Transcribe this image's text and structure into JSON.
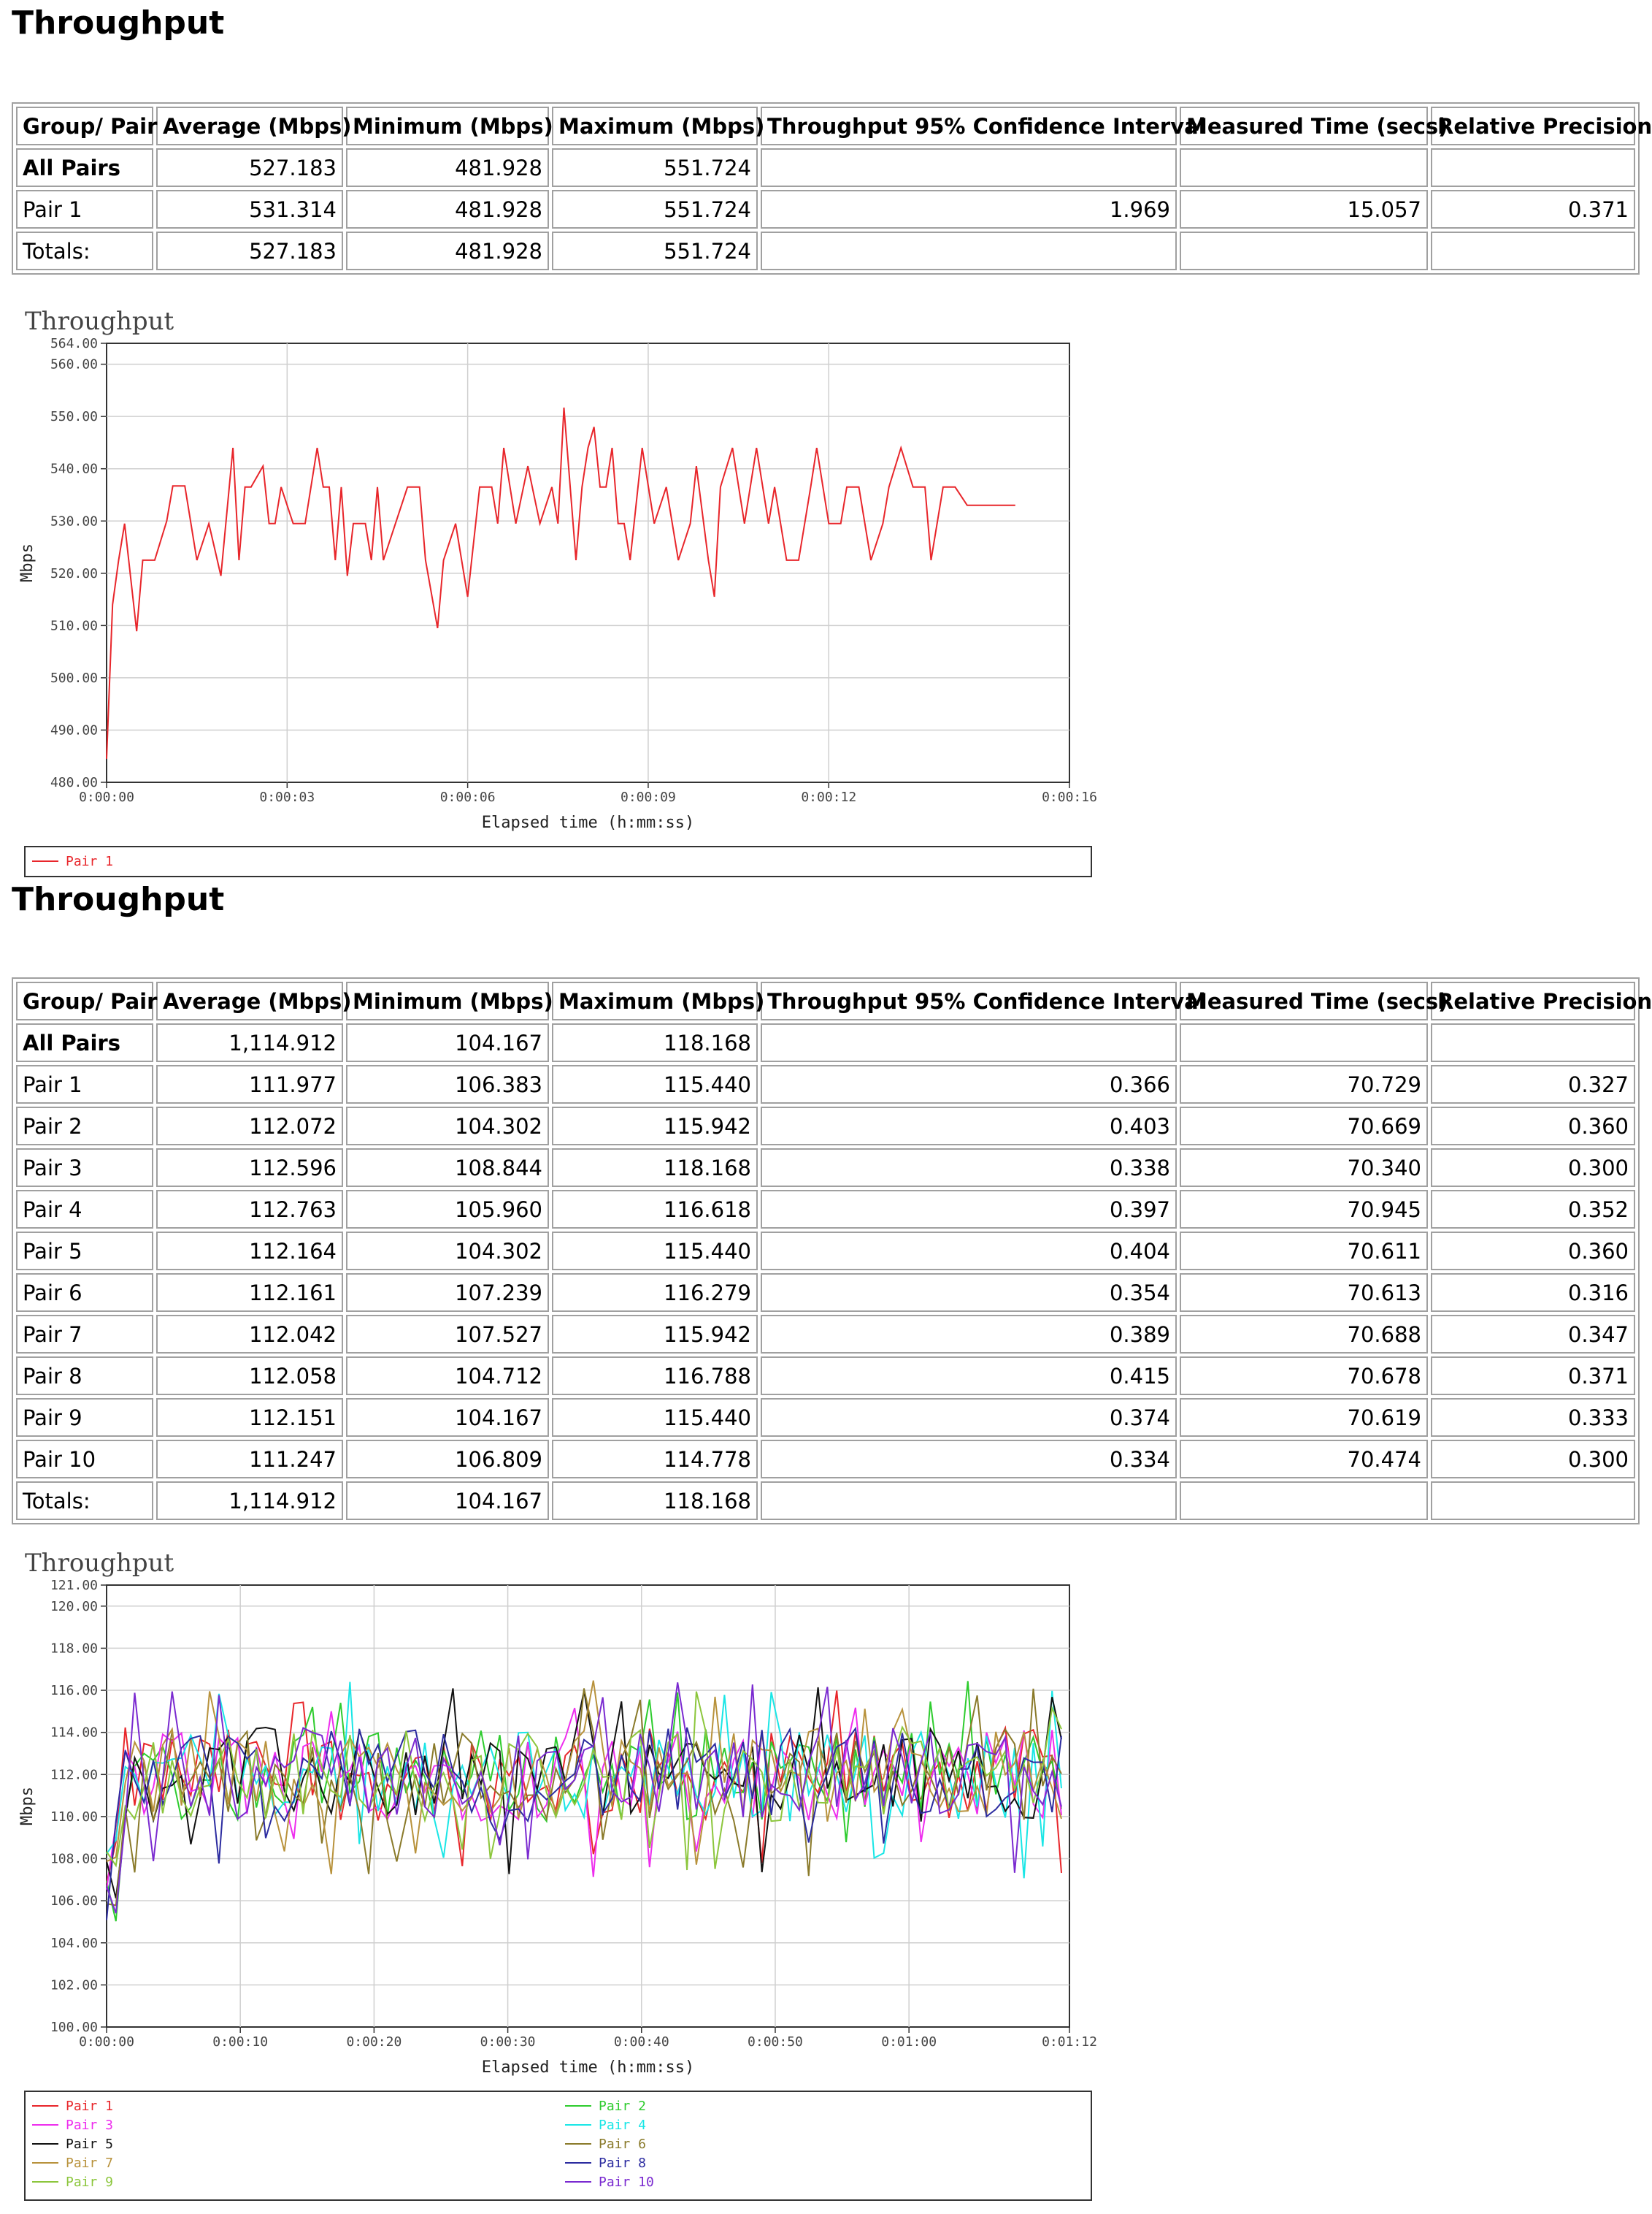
{
  "sections": [
    {
      "title": "Throughput",
      "headers": [
        "Group/ Pair",
        "Average (Mbps)",
        "Minimum (Mbps)",
        "Maximum (Mbps)",
        "Throughput 95% Confidence Interval",
        "Measured Time (secs)",
        "Relative Precision"
      ],
      "rows": [
        [
          "All Pairs",
          "527.183",
          "481.928",
          "551.724",
          "",
          "",
          ""
        ],
        [
          "Pair 1",
          "531.314",
          "481.928",
          "551.724",
          "1.969",
          "15.057",
          "0.371"
        ],
        [
          "Totals:",
          "527.183",
          "481.928",
          "551.724",
          "",
          "",
          ""
        ]
      ]
    },
    {
      "title": "Throughput",
      "headers": [
        "Group/ Pair",
        "Average (Mbps)",
        "Minimum (Mbps)",
        "Maximum (Mbps)",
        "Throughput 95% Confidence Interval",
        "Measured Time (secs)",
        "Relative Precision"
      ],
      "rows": [
        [
          "All Pairs",
          "1,114.912",
          "104.167",
          "118.168",
          "",
          "",
          ""
        ],
        [
          "Pair 1",
          "111.977",
          "106.383",
          "115.440",
          "0.366",
          "70.729",
          "0.327"
        ],
        [
          "Pair 2",
          "112.072",
          "104.302",
          "115.942",
          "0.403",
          "70.669",
          "0.360"
        ],
        [
          "Pair 3",
          "112.596",
          "108.844",
          "118.168",
          "0.338",
          "70.340",
          "0.300"
        ],
        [
          "Pair 4",
          "112.763",
          "105.960",
          "116.618",
          "0.397",
          "70.945",
          "0.352"
        ],
        [
          "Pair 5",
          "112.164",
          "104.302",
          "115.440",
          "0.404",
          "70.611",
          "0.360"
        ],
        [
          "Pair 6",
          "112.161",
          "107.239",
          "116.279",
          "0.354",
          "70.613",
          "0.316"
        ],
        [
          "Pair 7",
          "112.042",
          "107.527",
          "115.942",
          "0.389",
          "70.688",
          "0.347"
        ],
        [
          "Pair 8",
          "112.058",
          "104.712",
          "116.788",
          "0.415",
          "70.678",
          "0.371"
        ],
        [
          "Pair 9",
          "112.151",
          "104.167",
          "115.440",
          "0.374",
          "70.619",
          "0.333"
        ],
        [
          "Pair 10",
          "111.247",
          "106.809",
          "114.778",
          "0.334",
          "70.474",
          "0.300"
        ],
        [
          "Totals:",
          "1,114.912",
          "104.167",
          "118.168",
          "",
          "",
          ""
        ]
      ]
    }
  ],
  "chart_data": [
    {
      "type": "line",
      "title": "Throughput",
      "xlabel": "Elapsed time (h:mm:ss)",
      "ylabel": "Mbps",
      "xlim": [
        0,
        16
      ],
      "ylim": [
        480,
        564
      ],
      "yticks": [
        "480.00",
        "490.00",
        "500.00",
        "510.00",
        "520.00",
        "530.00",
        "540.00",
        "550.00",
        "560.00",
        "564.00"
      ],
      "xticks": [
        "0:00:00",
        "0:00:03",
        "0:00:06",
        "0:00:09",
        "0:00:12",
        "0:00:16"
      ],
      "grid": true,
      "legend_position": "bottom",
      "series": [
        {
          "name": "Pair 1",
          "color": "#e8262b",
          "x": [
            0.0,
            0.1,
            0.2,
            0.3,
            0.5,
            0.6,
            0.8,
            1.0,
            1.1,
            1.3,
            1.5,
            1.7,
            1.8,
            1.9,
            2.1,
            2.2,
            2.3,
            2.4,
            2.6,
            2.7,
            2.8,
            2.9,
            3.1,
            3.3,
            3.5,
            3.6,
            3.7,
            3.8,
            3.9,
            4.0,
            4.1,
            4.3,
            4.4,
            4.5,
            4.6,
            4.8,
            5.0,
            5.2,
            5.3,
            5.5,
            5.6,
            5.8,
            6.0,
            6.2,
            6.4,
            6.5,
            6.6,
            6.8,
            7.0,
            7.2,
            7.4,
            7.5,
            7.6,
            7.8,
            7.9,
            8.0,
            8.1,
            8.2,
            8.3,
            8.4,
            8.5,
            8.6,
            8.7,
            8.9,
            9.1,
            9.3,
            9.5,
            9.7,
            9.8,
            10.0,
            10.1,
            10.2,
            10.4,
            10.6,
            10.8,
            11.0,
            11.1,
            11.3,
            11.5,
            11.7,
            11.8,
            12.0,
            12.2,
            12.3,
            12.5,
            12.7,
            12.9,
            13.0,
            13.2,
            13.4,
            13.6,
            13.7,
            13.9,
            14.1,
            14.3,
            14.4,
            14.5,
            14.7,
            14.9,
            15.1
          ],
          "values": [
            484.5,
            514,
            522.5,
            529.5,
            508.9,
            522.5,
            522.5,
            530,
            536.7,
            536.7,
            522.5,
            529.5,
            524.5,
            519.5,
            544,
            522.5,
            536.5,
            536.5,
            540.5,
            529.5,
            529.5,
            536.5,
            529.5,
            529.5,
            544,
            536.5,
            536.5,
            522.5,
            536.5,
            519.5,
            529.5,
            529.5,
            522.5,
            536.5,
            522.5,
            529.5,
            536.5,
            536.5,
            522.5,
            509.5,
            522.5,
            529.5,
            515.5,
            536.5,
            536.5,
            529.5,
            544,
            529.5,
            540.5,
            529.5,
            536.5,
            529.5,
            551.7,
            522.5,
            536.5,
            544,
            548,
            536.5,
            536.5,
            544,
            529.5,
            529.5,
            522.5,
            544,
            529.5,
            536.5,
            522.5,
            529.5,
            540.5,
            522.5,
            515.5,
            536.5,
            544,
            529.5,
            544,
            529.5,
            536.5,
            522.5,
            522.5,
            536.5,
            544,
            529.5,
            529.5,
            536.5,
            536.5,
            522.5,
            529.5,
            536.5,
            544,
            536.5,
            536.5,
            522.5,
            536.5,
            536.5,
            533,
            533,
            533,
            533,
            533,
            533
          ]
        }
      ]
    },
    {
      "type": "line",
      "title": "Throughput",
      "xlabel": "Elapsed time (h:mm:ss)",
      "ylabel": "Mbps",
      "xlim": [
        0,
        72
      ],
      "ylim": [
        100,
        121
      ],
      "yticks": [
        "100.00",
        "102.00",
        "104.00",
        "106.00",
        "108.00",
        "110.00",
        "112.00",
        "114.00",
        "116.00",
        "118.00",
        "120.00",
        "121.00"
      ],
      "xticks": [
        "0:00:00",
        "0:00:10",
        "0:00:20",
        "0:00:30",
        "0:00:40",
        "0:00:50",
        "0:01:00",
        "0:01:12"
      ],
      "grid": true,
      "legend_position": "bottom",
      "series": [
        {
          "name": "Pair 1",
          "color": "#e8262b"
        },
        {
          "name": "Pair 2",
          "color": "#2ecc2e"
        },
        {
          "name": "Pair 3",
          "color": "#ee2dee"
        },
        {
          "name": "Pair 4",
          "color": "#19e6e6"
        },
        {
          "name": "Pair 5",
          "color": "#111111"
        },
        {
          "name": "Pair 6",
          "color": "#8a7a2a"
        },
        {
          "name": "Pair 7",
          "color": "#b8923c"
        },
        {
          "name": "Pair 8",
          "color": "#2c2ca0"
        },
        {
          "name": "Pair 9",
          "color": "#8cc63c"
        },
        {
          "name": "Pair 10",
          "color": "#7a2ad0"
        }
      ]
    }
  ]
}
